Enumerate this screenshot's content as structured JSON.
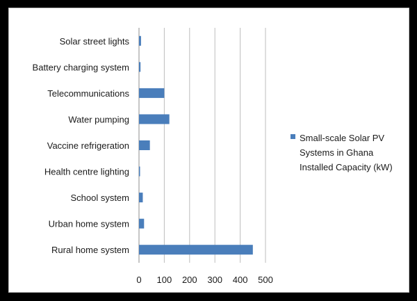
{
  "chart_data": {
    "type": "bar",
    "orientation": "horizontal",
    "categories": [
      "Solar street lights",
      "Battery charging system",
      "Telecommunications",
      "Water pumping",
      "Vaccine refrigeration",
      "Health centre lighting",
      "School system",
      "Urban home system",
      "Rural home system"
    ],
    "series": [
      {
        "name": "Small-scale Solar PV Systems in Ghana Installed Capacity (kW)",
        "values": [
          8,
          6,
          100,
          120,
          43,
          3,
          15,
          20,
          450
        ],
        "color": "#4a7ebb"
      }
    ],
    "xlim": [
      0,
      500
    ],
    "xticks": [
      0,
      100,
      200,
      300,
      400,
      500
    ],
    "grid": true,
    "legend_position": "right",
    "legend_lines": [
      "Small-scale Solar PV",
      "Systems in Ghana",
      "Installed Capacity (kW)"
    ]
  }
}
